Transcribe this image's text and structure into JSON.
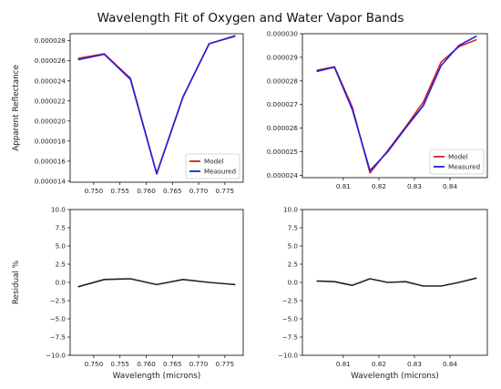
{
  "figure": {
    "title": "Wavelength Fit of Oxygen and Water Vapor Bands"
  },
  "colors": {
    "model": "#d62020",
    "measured": "#2020e0",
    "residual": "#222222"
  },
  "chart_data": [
    {
      "id": "o2-fit",
      "type": "line",
      "xlabel": "",
      "ylabel": "Apparent Reflectance",
      "xlim": [
        0.7455,
        0.7785
      ],
      "ylim": [
        1.39e-05,
        2.87e-05
      ],
      "xticks": [
        {
          "v": 0.75,
          "label": "0.750"
        },
        {
          "v": 0.755,
          "label": "0.755"
        },
        {
          "v": 0.76,
          "label": "0.760"
        },
        {
          "v": 0.765,
          "label": "0.765"
        },
        {
          "v": 0.77,
          "label": "0.770"
        },
        {
          "v": 0.775,
          "label": "0.775"
        }
      ],
      "yticks": [
        {
          "v": 1.4e-05,
          "label": "0.000014"
        },
        {
          "v": 1.6e-05,
          "label": "0.000016"
        },
        {
          "v": 1.8e-05,
          "label": "0.000018"
        },
        {
          "v": 2e-05,
          "label": "0.000020"
        },
        {
          "v": 2.2e-05,
          "label": "0.000022"
        },
        {
          "v": 2.4e-05,
          "label": "0.000024"
        },
        {
          "v": 2.6e-05,
          "label": "0.000026"
        },
        {
          "v": 2.8e-05,
          "label": "0.000028"
        }
      ],
      "x": [
        0.747,
        0.752,
        0.757,
        0.762,
        0.767,
        0.772,
        0.777
      ],
      "series": [
        {
          "name": "Model",
          "color": "#d62020",
          "values": [
            2.625e-05,
            2.67e-05,
            2.425e-05,
            1.478e-05,
            2.24e-05,
            2.77e-05,
            2.845e-05
          ]
        },
        {
          "name": "Measured",
          "color": "#2020e0",
          "values": [
            2.61e-05,
            2.665e-05,
            2.415e-05,
            1.472e-05,
            2.235e-05,
            2.77e-05,
            2.85e-05
          ]
        }
      ],
      "legend": {
        "position": "bottom-right",
        "entries": [
          "Model",
          "Measured"
        ]
      }
    },
    {
      "id": "h2o-fit",
      "type": "line",
      "xlabel": "",
      "ylabel": "",
      "xlim": [
        0.7985,
        0.8505
      ],
      "ylim": [
        2.39e-05,
        3e-05
      ],
      "xticks": [
        {
          "v": 0.81,
          "label": "0.81"
        },
        {
          "v": 0.82,
          "label": "0.82"
        },
        {
          "v": 0.83,
          "label": "0.83"
        },
        {
          "v": 0.84,
          "label": "0.84"
        }
      ],
      "yticks": [
        {
          "v": 2.4e-05,
          "label": "0.000024"
        },
        {
          "v": 2.5e-05,
          "label": "0.000025"
        },
        {
          "v": 2.6e-05,
          "label": "0.000026"
        },
        {
          "v": 2.7e-05,
          "label": "0.000027"
        },
        {
          "v": 2.8e-05,
          "label": "0.000028"
        },
        {
          "v": 2.9e-05,
          "label": "0.000029"
        },
        {
          "v": 3e-05,
          "label": "0.000030"
        }
      ],
      "x": [
        0.8025,
        0.8075,
        0.8125,
        0.8175,
        0.8225,
        0.8275,
        0.8325,
        0.8375,
        0.8425,
        0.8475
      ],
      "series": [
        {
          "name": "Model",
          "color": "#d62020",
          "values": [
            2.845e-05,
            2.86e-05,
            2.69e-05,
            2.41e-05,
            2.505e-05,
            2.605e-05,
            2.71e-05,
            2.88e-05,
            2.945e-05,
            2.975e-05
          ]
        },
        {
          "name": "Measured",
          "color": "#2020e0",
          "values": [
            2.84e-05,
            2.858e-05,
            2.68e-05,
            2.42e-05,
            2.5e-05,
            2.6e-05,
            2.695e-05,
            2.865e-05,
            2.95e-05,
            2.99e-05
          ]
        }
      ],
      "legend": {
        "position": "bottom-right",
        "entries": [
          "Model",
          "Measured"
        ]
      }
    },
    {
      "id": "o2-residual",
      "type": "line",
      "xlabel": "Wavelength (microns)",
      "ylabel": "Residual %",
      "xlim": [
        0.7455,
        0.7785
      ],
      "ylim": [
        -10.0,
        10.0
      ],
      "xticks": [
        {
          "v": 0.75,
          "label": "0.750"
        },
        {
          "v": 0.755,
          "label": "0.755"
        },
        {
          "v": 0.76,
          "label": "0.760"
        },
        {
          "v": 0.765,
          "label": "0.765"
        },
        {
          "v": 0.77,
          "label": "0.770"
        },
        {
          "v": 0.775,
          "label": "0.775"
        }
      ],
      "yticks": [
        {
          "v": 10.0,
          "label": "10.0"
        },
        {
          "v": 7.5,
          "label": "7.5"
        },
        {
          "v": 5.0,
          "label": "5.0"
        },
        {
          "v": 2.5,
          "label": "2.5"
        },
        {
          "v": 0.0,
          "label": "0.0"
        },
        {
          "v": -2.5,
          "label": "−2.5"
        },
        {
          "v": -5.0,
          "label": "−5.0"
        },
        {
          "v": -7.5,
          "label": "−7.5"
        },
        {
          "v": -10.0,
          "label": "−10.0"
        }
      ],
      "x": [
        0.747,
        0.752,
        0.757,
        0.762,
        0.767,
        0.772,
        0.777
      ],
      "series": [
        {
          "color": "#222222",
          "values": [
            -0.6,
            0.4,
            0.5,
            -0.3,
            0.4,
            0.0,
            -0.3
          ]
        }
      ]
    },
    {
      "id": "h2o-residual",
      "type": "line",
      "xlabel": "Wavelength (microns)",
      "ylabel": "",
      "xlim": [
        0.7985,
        0.8505
      ],
      "ylim": [
        -10.0,
        10.0
      ],
      "xticks": [
        {
          "v": 0.81,
          "label": "0.81"
        },
        {
          "v": 0.82,
          "label": "0.82"
        },
        {
          "v": 0.83,
          "label": "0.83"
        },
        {
          "v": 0.84,
          "label": "0.84"
        }
      ],
      "yticks": [
        {
          "v": 10.0,
          "label": "10.0"
        },
        {
          "v": 7.5,
          "label": "7.5"
        },
        {
          "v": 5.0,
          "label": "5.0"
        },
        {
          "v": 2.5,
          "label": "2.5"
        },
        {
          "v": 0.0,
          "label": "0.0"
        },
        {
          "v": -2.5,
          "label": "−2.5"
        },
        {
          "v": -5.0,
          "label": "−5.0"
        },
        {
          "v": -7.5,
          "label": "−7.5"
        },
        {
          "v": -10.0,
          "label": "−10.0"
        }
      ],
      "x": [
        0.8025,
        0.8075,
        0.8125,
        0.8175,
        0.8225,
        0.8275,
        0.8325,
        0.8375,
        0.8425,
        0.8475
      ],
      "series": [
        {
          "color": "#222222",
          "values": [
            0.2,
            0.1,
            -0.4,
            0.5,
            0.0,
            0.1,
            -0.5,
            -0.5,
            0.0,
            0.6
          ]
        }
      ]
    }
  ]
}
